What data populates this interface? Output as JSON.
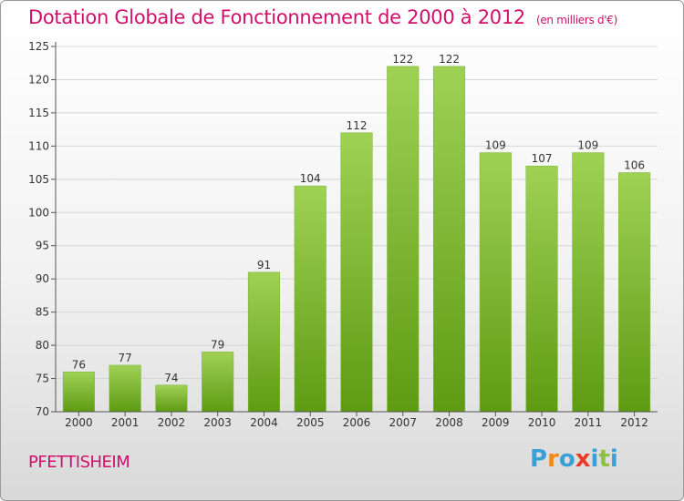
{
  "title": "Dotation Globale de Fonctionnement de 2000 à 2012",
  "subtitle": "(en milliers d'€)",
  "commune": "PFETTISHEIM",
  "logo": {
    "letters": [
      "P",
      "r",
      "o",
      "x",
      "i",
      "t",
      "i"
    ],
    "colors": [
      "#3aa0d8",
      "#f08a1c",
      "#3aa0d8",
      "#e83b2a",
      "#3aa0d8",
      "#8cc23f",
      "#3aa0d8"
    ]
  },
  "colors": {
    "bar_top": "#9fd155",
    "bar_bottom": "#5e9b13",
    "title": "#d0106a"
  },
  "chart_data": {
    "type": "bar",
    "categories": [
      "2000",
      "2001",
      "2002",
      "2003",
      "2004",
      "2005",
      "2006",
      "2007",
      "2008",
      "2009",
      "2010",
      "2011",
      "2012"
    ],
    "values": [
      76,
      77,
      74,
      79,
      91,
      104,
      112,
      122,
      122,
      109,
      107,
      109,
      106
    ],
    "ylim": [
      70,
      125
    ],
    "yticks": [
      70,
      75,
      80,
      85,
      90,
      95,
      100,
      105,
      110,
      115,
      120,
      125
    ],
    "grid": true,
    "data_labels": true
  }
}
